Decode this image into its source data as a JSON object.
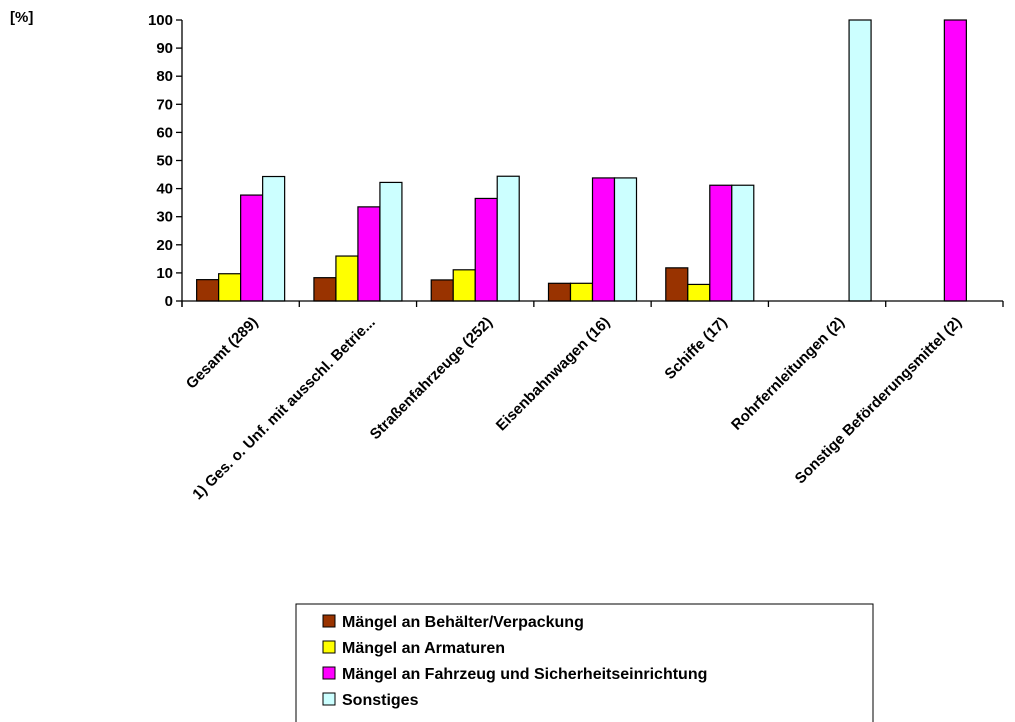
{
  "chart_data": {
    "type": "bar",
    "title": "",
    "xlabel": "",
    "ylabel": "[%]",
    "ylim": [
      0,
      100
    ],
    "yticks": [
      0,
      10,
      20,
      30,
      40,
      50,
      60,
      70,
      80,
      90,
      100
    ],
    "grid": false,
    "legend_position": "bottom",
    "categories": [
      "Gesamt (289)",
      "1) Ges. o. Unf. mit ausschl. Betrie...",
      "Straßenfahrzeuge (252)",
      "Eisenbahnwagen (16)",
      "Schiffe (17)",
      "Rohrfernleitungen (2)",
      "Sonstige Beförderungsmittel (2)"
    ],
    "series": [
      {
        "name": "Mängel an Behälter/Verpackung",
        "color": "#993300",
        "values": [
          7.6,
          8.3,
          7.5,
          6.3,
          11.8,
          0,
          0
        ]
      },
      {
        "name": "Mängel an Armaturen",
        "color": "#FFFF00",
        "values": [
          9.7,
          16.0,
          11.1,
          6.3,
          5.9,
          0,
          0
        ]
      },
      {
        "name": "Mängel an Fahrzeug und Sicherheitseinrichtung",
        "color": "#FF00FF",
        "values": [
          37.7,
          33.5,
          36.5,
          43.8,
          41.2,
          0,
          100
        ]
      },
      {
        "name": "Sonstiges",
        "color": "#CCFFFF",
        "values": [
          44.3,
          42.2,
          44.4,
          43.8,
          41.2,
          100,
          0
        ]
      }
    ]
  }
}
